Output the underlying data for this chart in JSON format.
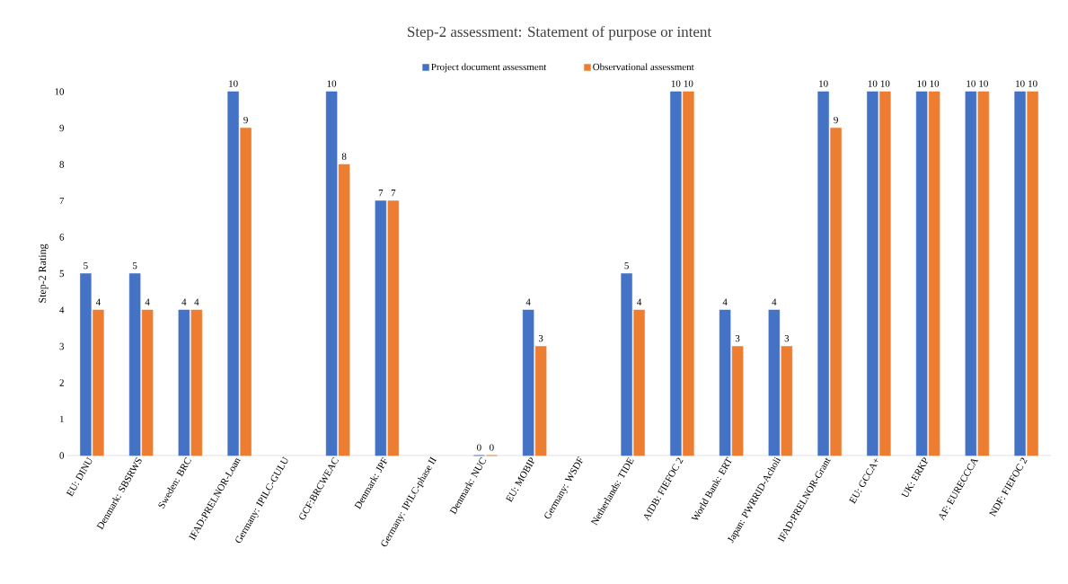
{
  "chart_data": {
    "type": "bar",
    "title": "Step-2 assessment: Statement of purpose or intent",
    "ylabel": "Step-2 Rating",
    "categories": [
      "EU: DINU",
      "Denmark: SBSRWS",
      "Sweden: BRC",
      "IFAD:PRELNOR-Loan",
      "Germany: IPILC-GULU",
      "GCF:BRCWEAC",
      "Denmark: JPF",
      "Germany: IPILC-phase II",
      "Denmark: NUC",
      "EU: MOBIP",
      "Germany: WSDF",
      "Netherlands: TIDE",
      "AfDB: FIEFOC 2",
      "World Bank: ERT",
      "Japan: PWRRID-Acholi",
      "IFAD:PRELNOR-Grant",
      "EU: GCCA+",
      "UK: ERKP",
      "AF: EURECCCA",
      "NDF: FIEFOC 2"
    ],
    "series": [
      {
        "name": "Project document assessment",
        "color": "#4472c4",
        "values": [
          5,
          5,
          4,
          10,
          null,
          10,
          7,
          null,
          0,
          4,
          null,
          5,
          10,
          4,
          4,
          10,
          10,
          10,
          10,
          10
        ]
      },
      {
        "name": "Observational assessment",
        "color": "#ed7d31",
        "values": [
          4,
          4,
          4,
          9,
          null,
          8,
          7,
          null,
          0,
          3,
          null,
          4,
          10,
          3,
          3,
          9,
          10,
          10,
          10,
          10
        ]
      }
    ],
    "ylim": [
      0,
      10
    ],
    "yticks": [
      0,
      1,
      2,
      3,
      4,
      5,
      6,
      7,
      8,
      9,
      10
    ],
    "grid": false,
    "legend": "top",
    "data_labels": true
  }
}
